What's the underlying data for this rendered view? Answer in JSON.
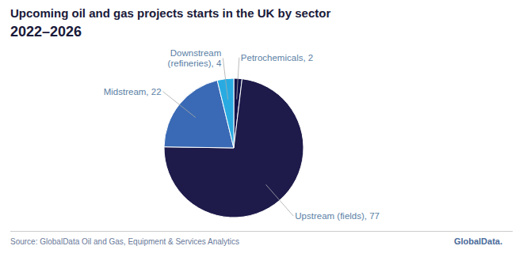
{
  "chart_data": {
    "type": "pie",
    "title": "Upcoming oil and gas projects starts in the UK by sector",
    "subtitle": "2022–2026",
    "categories": [
      "Petrochemicals, 2",
      "Upstream (fields), 77",
      "Midstream, 22",
      "Downstream\n(refineries), 4"
    ],
    "values": [
      2,
      77,
      22,
      4
    ],
    "colors": [
      "#12124a",
      "#1e1b4b",
      "#3a6ab5",
      "#29abe2"
    ],
    "annotations": [
      "Source: GlobalData Oil and Gas, Equipment & Services Analytics",
      "GlobalData."
    ]
  }
}
